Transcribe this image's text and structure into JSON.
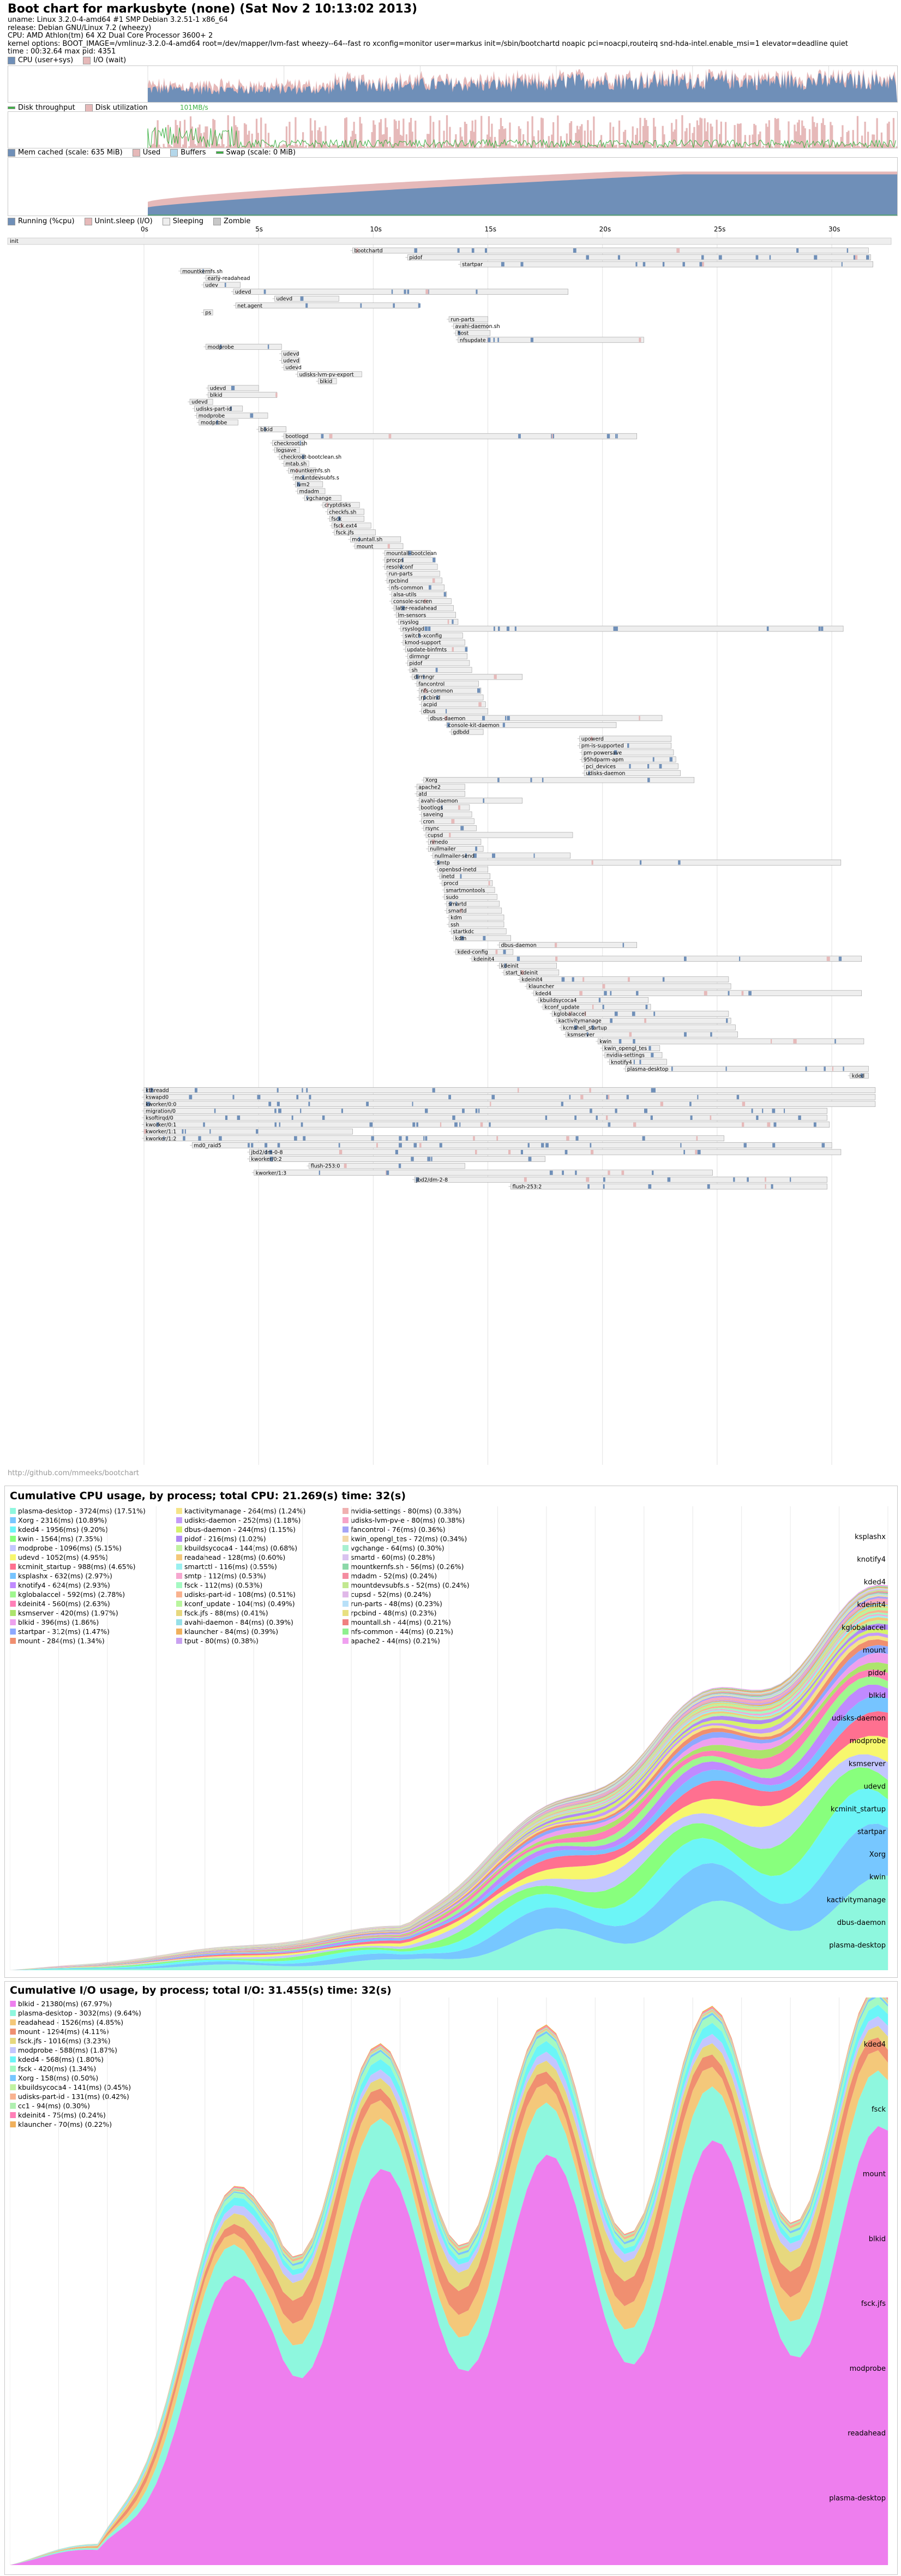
{
  "header": {
    "title": "Boot chart for markusbyte (none) (Sat Nov  2 10:13:02 2013)",
    "lines": [
      "uname: Linux 3.2.0-4-amd64 #1 SMP Debian 3.2.51-1 x86_64",
      "release: Debian GNU/Linux 7.2 (wheezy)",
      "CPU: AMD Athlon(tm) 64 X2 Dual Core Processor 3600+ 2",
      "kernel options: BOOT_IMAGE=/vmlinuz-3.2.0-4-amd64 root=/dev/mapper/lvm-fast wheezy--64--fast ro xconfig=monitor user=markus init=/sbin/bootchartd noapic pci=noacpi,routeirq snd-hda-intel.enable_msi=1 elevator=deadline quiet",
      "time : 00:32.64      max pid: 4351"
    ]
  },
  "legends": {
    "cpu": [
      {
        "label": "CPU (user+sys)",
        "color": "#6f8fb8"
      },
      {
        "label": "I/O (wait)",
        "color": "#e6b9b9"
      }
    ],
    "disk": [
      {
        "label": "Disk throughput",
        "color": "#3cb043"
      },
      {
        "label": "Disk utilization",
        "color": "#e6b9b9"
      }
    ],
    "disk_peak": "101MB/s",
    "mem": [
      {
        "label": "Mem cached (scale: 635 MiB)",
        "color": "#6f8fb8"
      },
      {
        "label": "Used",
        "color": "#e6b9b9"
      },
      {
        "label": "Buffers",
        "color": "#b4d7ea"
      },
      {
        "label": "Swap (scale: 0 MiB)",
        "color": "#3cb043"
      }
    ],
    "proc": [
      {
        "label": "Running (%cpu)",
        "color": "#6f8fb8"
      },
      {
        "label": "Unint.sleep (I/O)",
        "color": "#e6b9b9"
      },
      {
        "label": "Sleeping",
        "color": "#eeeeee"
      },
      {
        "label": "Zombie",
        "color": "#c8c8c8"
      }
    ]
  },
  "time_axis": {
    "ticks": [
      "0s",
      "5s",
      "10s",
      "15s",
      "20s",
      "25s",
      "30s"
    ]
  },
  "init_label": "init",
  "processes": [
    {
      "name": "bootchartd",
      "start": 9.1,
      "end": 31.6
    },
    {
      "name": "pidof",
      "start": 11.5,
      "end": 31.7
    },
    {
      "name": "startpar",
      "start": 13.8,
      "end": 31.8
    },
    {
      "name": "mountkernfs.sh",
      "start": 1.6,
      "end": 2.9
    },
    {
      "name": "early-readahead",
      "start": 2.7,
      "end": 3.3
    },
    {
      "name": "udev",
      "start": 2.6,
      "end": 4.2
    },
    {
      "name": "udevd",
      "start": 3.9,
      "end": 18.5
    },
    {
      "name": "udevd",
      "start": 5.7,
      "end": 8.5
    },
    {
      "name": "net.agent",
      "start": 4.0,
      "end": 12.0
    },
    {
      "name": "ps",
      "start": 2.6,
      "end": 3.0
    },
    {
      "name": "run-parts",
      "start": 13.3,
      "end": 15.0
    },
    {
      "name": "avahi-daemon.sh",
      "start": 13.5,
      "end": 15.0
    },
    {
      "name": "host",
      "start": 13.6,
      "end": 15.1
    },
    {
      "name": "nfsupdate",
      "start": 13.7,
      "end": 21.8
    },
    {
      "name": "modprobe",
      "start": 2.7,
      "end": 6.0
    },
    {
      "name": "udevd",
      "start": 6.0,
      "end": 6.7
    },
    {
      "name": "udevd",
      "start": 6.0,
      "end": 6.8
    },
    {
      "name": "udevd",
      "start": 6.1,
      "end": 6.7
    },
    {
      "name": "udisks-lvm-pv-export",
      "start": 6.7,
      "end": 9.5
    },
    {
      "name": "blkid",
      "start": 7.6,
      "end": 8.4
    },
    {
      "name": "udevd",
      "start": 2.8,
      "end": 5.0
    },
    {
      "name": "blkid",
      "start": 2.8,
      "end": 5.8
    },
    {
      "name": "udevd",
      "start": 2.0,
      "end": 3.0
    },
    {
      "name": "udisks-part-id",
      "start": 2.2,
      "end": 4.3
    },
    {
      "name": "modprobe",
      "start": 2.3,
      "end": 5.4
    },
    {
      "name": "modprobe",
      "start": 2.4,
      "end": 4.1
    },
    {
      "name": "blkid",
      "start": 5.0,
      "end": 6.2
    },
    {
      "name": "bootlogd",
      "start": 6.1,
      "end": 21.5
    },
    {
      "name": "checkroot.sh",
      "start": 5.6,
      "end": 7.0
    },
    {
      "name": "logsave",
      "start": 5.7,
      "end": 6.8
    },
    {
      "name": "checkroot-bootclean.sh",
      "start": 5.9,
      "end": 7.0
    },
    {
      "name": "mtab.sh",
      "start": 6.1,
      "end": 7.2
    },
    {
      "name": "mountkernfs.sh",
      "start": 6.3,
      "end": 7.5
    },
    {
      "name": "mountdevsubfs.s",
      "start": 6.5,
      "end": 7.7
    },
    {
      "name": "lvm2",
      "start": 6.6,
      "end": 7.8
    },
    {
      "name": "mdadm",
      "start": 6.7,
      "end": 7.9
    },
    {
      "name": "vgchange",
      "start": 7.0,
      "end": 8.6
    },
    {
      "name": "cryptdisks",
      "start": 7.8,
      "end": 9.4
    },
    {
      "name": "checkfs.sh",
      "start": 8.0,
      "end": 9.6
    },
    {
      "name": "fsck",
      "start": 8.1,
      "end": 9.6
    },
    {
      "name": "fsck.ext4",
      "start": 8.2,
      "end": 9.9
    },
    {
      "name": "fsck.jfs",
      "start": 8.3,
      "end": 10.1
    },
    {
      "name": "mountall.sh",
      "start": 9.0,
      "end": 11.2
    },
    {
      "name": "mount",
      "start": 9.2,
      "end": 11.3
    },
    {
      "name": "mountall-bootclean",
      "start": 10.5,
      "end": 12.5
    },
    {
      "name": "procps",
      "start": 10.5,
      "end": 12.7
    },
    {
      "name": "resolvconf",
      "start": 10.5,
      "end": 12.8
    },
    {
      "name": "run-parts",
      "start": 10.6,
      "end": 12.9
    },
    {
      "name": "rpcbind",
      "start": 10.6,
      "end": 13.0
    },
    {
      "name": "nfs-common",
      "start": 10.7,
      "end": 13.1
    },
    {
      "name": "alsa-utils",
      "start": 10.8,
      "end": 13.2
    },
    {
      "name": "console-screen",
      "start": 10.8,
      "end": 13.4
    },
    {
      "name": "later-readahead",
      "start": 10.9,
      "end": 13.5
    },
    {
      "name": "lm-sensors",
      "start": 11.0,
      "end": 13.6
    },
    {
      "name": "rsyslog",
      "start": 11.1,
      "end": 13.7
    },
    {
      "name": "rsyslogd",
      "start": 11.2,
      "end": 30.5
    },
    {
      "name": "switch-xconfig",
      "start": 11.3,
      "end": 13.9
    },
    {
      "name": "kmod-support",
      "start": 11.3,
      "end": 14.0
    },
    {
      "name": "update-binfmts",
      "start": 11.4,
      "end": 14.1
    },
    {
      "name": "dirmngr",
      "start": 11.5,
      "end": 14.1
    },
    {
      "name": "pidof",
      "start": 11.5,
      "end": 14.2
    },
    {
      "name": "sh",
      "start": 11.6,
      "end": 14.3
    },
    {
      "name": "dirmngr",
      "start": 11.7,
      "end": 16.5
    },
    {
      "name": "fancontrol",
      "start": 11.9,
      "end": 14.6
    },
    {
      "name": "nfs-common",
      "start": 12.0,
      "end": 14.7
    },
    {
      "name": "rpcbind",
      "start": 12.0,
      "end": 14.8
    },
    {
      "name": "acpid",
      "start": 12.1,
      "end": 14.9
    },
    {
      "name": "dbus",
      "start": 12.1,
      "end": 15.0
    },
    {
      "name": "dbus-daemon",
      "start": 12.4,
      "end": 22.6
    },
    {
      "name": "console-kit-daemon",
      "start": 13.2,
      "end": 20.6
    },
    {
      "name": "gdbdd",
      "start": 13.4,
      "end": 14.8
    },
    {
      "name": "upowerd",
      "start": 19.0,
      "end": 23.0
    },
    {
      "name": "pm-is-supported",
      "start": 19.0,
      "end": 23.0
    },
    {
      "name": "pm-powersave",
      "start": 19.1,
      "end": 23.1
    },
    {
      "name": "95hdparm-apm",
      "start": 19.1,
      "end": 23.2
    },
    {
      "name": "pci_devices",
      "start": 19.2,
      "end": 23.3
    },
    {
      "name": "udisks-daemon",
      "start": 19.2,
      "end": 23.4
    },
    {
      "name": "Xorg",
      "start": 12.2,
      "end": 24.0
    },
    {
      "name": "apache2",
      "start": 11.9,
      "end": 14.0
    },
    {
      "name": "atd",
      "start": 11.9,
      "end": 14.0
    },
    {
      "name": "avahi-daemon",
      "start": 12.0,
      "end": 16.5
    },
    {
      "name": "bootlogs",
      "start": 12.0,
      "end": 14.2
    },
    {
      "name": "saveing",
      "start": 12.1,
      "end": 14.3
    },
    {
      "name": "cron",
      "start": 12.1,
      "end": 14.4
    },
    {
      "name": "rsync",
      "start": 12.2,
      "end": 14.5
    },
    {
      "name": "cupsd",
      "start": 12.3,
      "end": 18.7
    },
    {
      "name": "nmedo",
      "start": 12.4,
      "end": 14.7
    },
    {
      "name": "nullmailer",
      "start": 12.4,
      "end": 14.8
    },
    {
      "name": "nullmailer-send",
      "start": 12.6,
      "end": 18.6
    },
    {
      "name": "smtp",
      "start": 12.7,
      "end": 30.4
    },
    {
      "name": "openbsd-inetd",
      "start": 12.8,
      "end": 15.0
    },
    {
      "name": "inetd",
      "start": 12.9,
      "end": 15.1
    },
    {
      "name": "procd",
      "start": 13.0,
      "end": 15.2
    },
    {
      "name": "smartmontools",
      "start": 13.1,
      "end": 15.3
    },
    {
      "name": "sudo",
      "start": 13.1,
      "end": 15.4
    },
    {
      "name": "smartd",
      "start": 13.2,
      "end": 15.5
    },
    {
      "name": "smartd",
      "start": 13.2,
      "end": 15.6
    },
    {
      "name": "kdm",
      "start": 13.3,
      "end": 15.7
    },
    {
      "name": "ssh",
      "start": 13.3,
      "end": 15.7
    },
    {
      "name": "startkdc",
      "start": 13.4,
      "end": 15.8
    },
    {
      "name": "kdm",
      "start": 13.5,
      "end": 16.0
    },
    {
      "name": "dbus-daemon",
      "start": 15.5,
      "end": 21.5
    },
    {
      "name": "kded-config",
      "start": 13.6,
      "end": 16.1
    },
    {
      "name": "kdeinit4",
      "start": 14.3,
      "end": 31.3
    },
    {
      "name": "kdeinit",
      "start": 15.5,
      "end": 18.0
    },
    {
      "name": "start_kdeinit",
      "start": 15.7,
      "end": 18.1
    },
    {
      "name": "kdeinit4",
      "start": 16.4,
      "end": 25.5
    },
    {
      "name": "klauncher",
      "start": 16.7,
      "end": 25.6
    },
    {
      "name": "kded4",
      "start": 17.0,
      "end": 31.3
    },
    {
      "name": "kbuildsycoca4",
      "start": 17.2,
      "end": 22.0
    },
    {
      "name": "kconf_update",
      "start": 17.4,
      "end": 22.1
    },
    {
      "name": "kglobalaccel",
      "start": 17.8,
      "end": 25.5
    },
    {
      "name": "kactivitymanage",
      "start": 18.0,
      "end": 25.6
    },
    {
      "name": "kcmshell_startup",
      "start": 18.2,
      "end": 25.8
    },
    {
      "name": "ksmserver",
      "start": 18.4,
      "end": 25.9
    },
    {
      "name": "kwin",
      "start": 19.8,
      "end": 31.4
    },
    {
      "name": "kwin_opengl_tes",
      "start": 20.0,
      "end": 22.5
    },
    {
      "name": "nvidia-settings",
      "start": 20.1,
      "end": 22.6
    },
    {
      "name": "knotify4",
      "start": 20.3,
      "end": 22.8
    },
    {
      "name": "plasma-desktop",
      "start": 21.0,
      "end": 31.6
    },
    {
      "name": "kded",
      "start": 30.8,
      "end": 31.6
    }
  ],
  "kernel_threads": [
    {
      "name": "kthreadd",
      "start": 0.0,
      "end": 31.9
    },
    {
      "name": "kswapd0",
      "start": 0.0,
      "end": 31.9
    },
    {
      "name": "kworker/0:0",
      "start": 0.0,
      "end": 31.9
    },
    {
      "name": "migration/0",
      "start": 0.0,
      "end": 29.8
    },
    {
      "name": "ksoftirqd/0",
      "start": 0.0,
      "end": 29.8
    },
    {
      "name": "kworker/0:1",
      "start": 0.0,
      "end": 29.9
    },
    {
      "name": "kworker/1:1",
      "start": 0.0,
      "end": 9.1
    },
    {
      "name": "kworker/1:2",
      "start": 0.0,
      "end": 25.3
    },
    {
      "name": "md0_raid5",
      "start": 2.1,
      "end": 30.0
    },
    {
      "name": "jbd2/dm-0-8",
      "start": 4.6,
      "end": 30.4
    },
    {
      "name": "kworker/0:2",
      "start": 4.6,
      "end": 17.5
    },
    {
      "name": "flush-253:0",
      "start": 7.2,
      "end": 14.0
    },
    {
      "name": "kworker/1:3",
      "start": 4.8,
      "end": 24.8
    },
    {
      "name": "jbd2/dm-2-8",
      "start": 11.8,
      "end": 29.8
    },
    {
      "name": "flush-253:2",
      "start": 16.0,
      "end": 29.8
    }
  ],
  "footer_link": "http://github.com/mmeeks/bootchart",
  "cpu_section": {
    "title": "Cumulative CPU usage, by process; total CPU:  21.269(s) time: 32(s)",
    "items": [
      {
        "label": "plasma-desktop - 3724(ms) (17.51%)",
        "color": "#8ef7de"
      },
      {
        "label": "Xorg - 2316(ms) (10.89%)",
        "color": "#77c7ff"
      },
      {
        "label": "kded4 - 1956(ms) (9.20%)",
        "color": "#6cf5f7"
      },
      {
        "label": "kwin - 1564(ms) (7.35%)",
        "color": "#88ff7d"
      },
      {
        "label": "modprobe - 1096(ms) (5.15%)",
        "color": "#c3c6ff"
      },
      {
        "label": "udevd - 1052(ms) (4.95%)",
        "color": "#f7f76d"
      },
      {
        "label": "kcminit_startup - 988(ms) (4.65%)",
        "color": "#ff7090"
      },
      {
        "label": "ksplashx - 632(ms) (2.97%)",
        "color": "#76c4ff"
      },
      {
        "label": "knotify4 - 624(ms) (2.93%)",
        "color": "#c08aff"
      },
      {
        "label": "kglobalaccel - 592(ms) (2.78%)",
        "color": "#9ff78e"
      },
      {
        "label": "kdeinit4 - 560(ms) (2.63%)",
        "color": "#ff7fb7"
      },
      {
        "label": "ksmserver - 420(ms) (1.97%)",
        "color": "#ace46c"
      },
      {
        "label": "blkid - 396(ms) (1.86%)",
        "color": "#eea0ee"
      },
      {
        "label": "startpar - 312(ms) (1.47%)",
        "color": "#8da8ff"
      },
      {
        "label": "mount - 284(ms) (1.34%)",
        "color": "#f08f70"
      },
      {
        "label": "kactivitymanage - 264(ms) (1.24%)",
        "color": "#f5e488"
      },
      {
        "label": "udisks-daemon - 252(ms) (1.18%)",
        "color": "#c59bf8"
      },
      {
        "label": "dbus-daemon - 244(ms) (1.15%)",
        "color": "#d5f26b"
      },
      {
        "label": "pidof - 216(ms) (1.02%)",
        "color": "#b089f5"
      },
      {
        "label": "kbuildsycoca4 - 144(ms) (0.68%)",
        "color": "#c0f2a0"
      },
      {
        "label": "readahead - 128(ms) (0.60%)",
        "color": "#f4c87a"
      },
      {
        "label": "smartctl - 116(ms) (0.55%)",
        "color": "#9af0f0"
      },
      {
        "label": "smtp - 112(ms) (0.53%)",
        "color": "#f6a7d0"
      },
      {
        "label": "fsck - 112(ms) (0.53%)",
        "color": "#a4f9c2"
      },
      {
        "label": "udisks-part-id - 108(ms) (0.51%)",
        "color": "#f9b28f"
      },
      {
        "label": "kconf_update - 104(ms) (0.49%)",
        "color": "#b9f59d"
      },
      {
        "label": "fsck.jfs - 88(ms) (0.41%)",
        "color": "#e7d87e"
      },
      {
        "label": "avahi-daemon - 84(ms) (0.39%)",
        "color": "#96e0e8"
      },
      {
        "label": "klauncher - 84(ms) (0.39%)",
        "color": "#f0b05c"
      },
      {
        "label": "tput - 80(ms) (0.38%)",
        "color": "#c8a0f0"
      },
      {
        "label": "nvidia-settings - 80(ms) (0.38%)",
        "color": "#f0b0b0"
      },
      {
        "label": "udisks-lvm-pv-e - 80(ms) (0.38%)",
        "color": "#f7a4c8"
      },
      {
        "label": "fancontrol - 76(ms) (0.36%)",
        "color": "#a4a4f7"
      },
      {
        "label": "kwin_opengl_tes - 72(ms) (0.34%)",
        "color": "#f3d9a8"
      },
      {
        "label": "vgchange - 64(ms) (0.30%)",
        "color": "#a8f0d0"
      },
      {
        "label": "smartd - 60(ms) (0.28%)",
        "color": "#d9c3f0"
      },
      {
        "label": "mountkernfs.sh - 56(ms) (0.26%)",
        "color": "#8cd8a8"
      },
      {
        "label": "mdadm - 52(ms) (0.24%)",
        "color": "#f48ca0"
      },
      {
        "label": "mountdevsubfs.s - 52(ms) (0.24%)",
        "color": "#c2e890"
      },
      {
        "label": "cupsd - 52(ms) (0.24%)",
        "color": "#e0b8e8"
      },
      {
        "label": "run-parts - 48(ms) (0.23%)",
        "color": "#b8e0f8"
      },
      {
        "label": "rpcbind - 48(ms) (0.23%)",
        "color": "#e8e080"
      },
      {
        "label": "mountall.sh - 44(ms) (0.21%)",
        "color": "#f08080"
      },
      {
        "label": "nfs-common - 44(ms) (0.21%)",
        "color": "#90f090"
      },
      {
        "label": "apache2 - 44(ms) (0.21%)",
        "color": "#f0a0f0"
      }
    ],
    "band_labels": [
      "ksplashx",
      "knotify4",
      "kded4",
      "kdeinit4",
      "kglobalaccel",
      "mount",
      "pidof",
      "blkid",
      "udisks-daemon",
      "modprobe",
      "ksmserver",
      "udevd",
      "kcminit_startup",
      "startpar",
      "Xorg",
      "kwin",
      "kactivitymanage",
      "dbus-daemon",
      "plasma-desktop"
    ]
  },
  "io_section": {
    "title": "Cumulative I/O usage, by process; total I/O:  31.455(s) time: 32(s)",
    "items": [
      {
        "label": "blkid - 21380(ms) (67.97%)",
        "color": "#ee7eee"
      },
      {
        "label": "plasma-desktop - 3032(ms) (9.64%)",
        "color": "#8ef7de"
      },
      {
        "label": "readahead - 1526(ms) (4.85%)",
        "color": "#f4c87a"
      },
      {
        "label": "mount - 1294(ms) (4.11%)",
        "color": "#f08f70"
      },
      {
        "label": "fsck.jfs - 1016(ms) (3.23%)",
        "color": "#e7d87e"
      },
      {
        "label": "modprobe - 588(ms) (1.87%)",
        "color": "#c3c6ff"
      },
      {
        "label": "kded4 - 568(ms) (1.80%)",
        "color": "#6cf5f7"
      },
      {
        "label": "fsck - 420(ms) (1.34%)",
        "color": "#a4f9c2"
      },
      {
        "label": "Xorg - 158(ms) (0.50%)",
        "color": "#77c7ff"
      },
      {
        "label": "kbuildsycoca4 - 141(ms) (0.45%)",
        "color": "#c0f2a0"
      },
      {
        "label": "udisks-part-id - 131(ms) (0.42%)",
        "color": "#f9b28f"
      },
      {
        "label": "cc1 - 94(ms) (0.30%)",
        "color": "#b0f0b0"
      },
      {
        "label": "kdeinit4 - 75(ms) (0.24%)",
        "color": "#ff7fb7"
      },
      {
        "label": "klauncher - 70(ms) (0.22%)",
        "color": "#f0b05c"
      }
    ],
    "band_labels": [
      "kded4",
      "fsck",
      "mount",
      "blkid",
      "fsck.jfs",
      "modprobe",
      "readahead",
      "plasma-desktop"
    ]
  }
}
